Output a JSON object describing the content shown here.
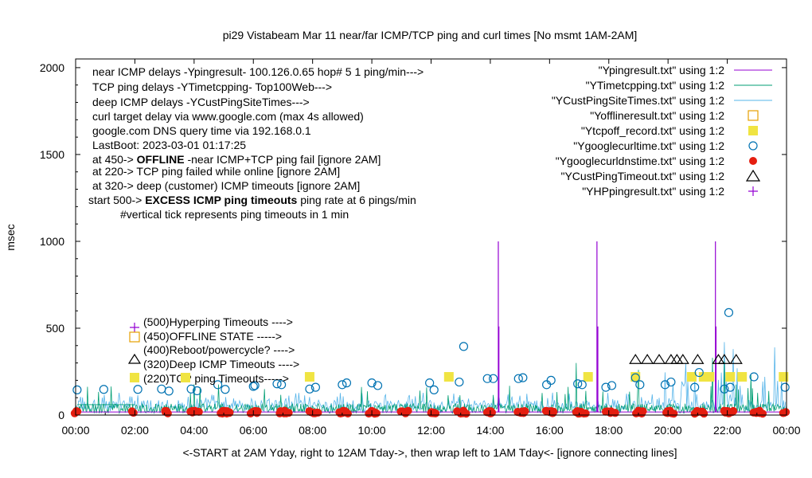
{
  "title": "pi29 Vistabeam Mar 11  near/far ICMP/TCP ping and curl times [No msmt 1AM-2AM]",
  "xlabel": "<-START at 2AM Yday, right to 12AM Tday->, then wrap left to 1AM Tday<- [ignore connecting lines]",
  "ylabel": "msec",
  "info": {
    "line1": "near ICMP delays -Ypingresult- 100.126.0.65 hop# 5 1 ping/min--->",
    "line2": "TCP ping delays -YTimetcpping- Top100Web--->",
    "line3": "deep ICMP delays -YCustPingSiteTimes--->",
    "line4": "curl target delay via www.google.com (max 4s allowed)",
    "line5": "google.com DNS query time via 192.168.0.1",
    "line6": "LastBoot: 2023-03-01 01:17:25",
    "line7_pre": "at 450->",
    "line7_bold": "OFFLINE",
    "line7_post": "-near ICMP+TCP ping fail [ignore 2AM]",
    "line8": "at 220-> TCP ping failed while online [ignore 2AM]",
    "line9": "at 320-> deep (customer) ICMP timeouts [ignore 2AM]",
    "line10_pre": "start 500->",
    "line10_bold": "EXCESS ICMP ping timeouts",
    "line10_post": "ping rate at 6 pings/min",
    "line11": "#vertical tick represents ping timeouts in 1 min"
  },
  "markers_legend": {
    "m500": "(500)Hyperping Timeouts ---->",
    "m450": "(450)OFFLINE STATE ----->",
    "m400": "(400)Reboot/powercycle? ---->",
    "m320": "(320)Deep ICMP Timeouts ---->",
    "m220": "(220)TCP ping Timeouts----->"
  },
  "colors": {
    "ping": "#9400d3",
    "tcp": "#009e73",
    "deep": "#56b4e9",
    "offline": "#e69f00",
    "tcpoff": "#f0e442",
    "curl": "#0072b2",
    "dns": "#e51e10",
    "custtimeout": "#000000",
    "hp": "#9400d3"
  },
  "chart_data": {
    "type": "line",
    "title": "pi29 Vistabeam Mar 11  near/far ICMP/TCP ping and curl times [No msmt 1AM-2AM]",
    "xlabel": "<-START at 2AM Yday, right to 12AM Tday->, then wrap left to 1AM Tday<- [ignore connecting lines]",
    "ylabel": "msec",
    "xlim": [
      0,
      24
    ],
    "ylim": [
      0,
      2050
    ],
    "x_unit": "hour of day",
    "xticks": [
      "00:00",
      "02:00",
      "04:00",
      "06:00",
      "08:00",
      "10:00",
      "12:00",
      "14:00",
      "16:00",
      "18:00",
      "20:00",
      "22:00",
      "00:00"
    ],
    "yticks": [
      "0",
      "500",
      "1000",
      "1500",
      "2000"
    ],
    "legend_position": "top-right",
    "grid": false,
    "series": [
      {
        "name": "\"Ypingresult.txt\" using 1:2",
        "style": "line",
        "color": "#9400d3",
        "baseline_ms": 18,
        "spikes": [
          [
            14.27,
            1000
          ],
          [
            14.29,
            510
          ],
          [
            17.6,
            1000
          ],
          [
            17.63,
            510
          ],
          [
            21.6,
            1000
          ],
          [
            21.62,
            510
          ]
        ]
      },
      {
        "name": "\"YTimetcpping.txt\" using 1:2",
        "style": "line",
        "color": "#009e73",
        "typical_range_ms": [
          10,
          90
        ],
        "peaks": [
          [
            16.9,
            300
          ],
          [
            19.0,
            260
          ],
          [
            21.5,
            330
          ],
          [
            21.9,
            310
          ],
          [
            22.8,
            230
          ]
        ]
      },
      {
        "name": "\"YCustPingSiteTimes.txt\" using 1:2",
        "style": "line",
        "color": "#56b4e9",
        "typical_range_ms": [
          20,
          130
        ],
        "peaks": [
          [
            20.6,
            300
          ],
          [
            21.9,
            420
          ],
          [
            22.2,
            380
          ],
          [
            23.6,
            390
          ]
        ]
      },
      {
        "name": "\"Yofflineresult.txt\" using 1:2",
        "style": "open-square",
        "color": "#e69f00",
        "points": []
      },
      {
        "name": "\"Ytcpoff_record.txt\" using 1:2",
        "style": "filled-square",
        "color": "#f0e442",
        "points": [
          [
            7.9,
            220
          ],
          [
            12.6,
            220
          ],
          [
            17.3,
            220
          ],
          [
            18.9,
            220
          ],
          [
            20.8,
            220
          ],
          [
            21.2,
            220
          ],
          [
            21.4,
            220
          ],
          [
            22.1,
            220
          ],
          [
            22.5,
            220
          ],
          [
            23.9,
            220
          ]
        ]
      },
      {
        "name": "\"Ygooglecurltime.txt\" using 1:2",
        "style": "open-circle",
        "color": "#0072b2",
        "points": [
          [
            0.05,
            145
          ],
          [
            0.95,
            148
          ],
          [
            2.1,
            148
          ],
          [
            2.9,
            150
          ],
          [
            3.15,
            138
          ],
          [
            3.9,
            150
          ],
          [
            4.1,
            140
          ],
          [
            4.8,
            175
          ],
          [
            5.05,
            148
          ],
          [
            6.0,
            165
          ],
          [
            6.05,
            170
          ],
          [
            6.8,
            180
          ],
          [
            6.95,
            175
          ],
          [
            7.9,
            150
          ],
          [
            8.1,
            160
          ],
          [
            9.0,
            175
          ],
          [
            9.15,
            185
          ],
          [
            10.0,
            185
          ],
          [
            10.2,
            170
          ],
          [
            11.95,
            185
          ],
          [
            12.1,
            145
          ],
          [
            12.95,
            190
          ],
          [
            13.1,
            395
          ],
          [
            13.9,
            210
          ],
          [
            14.1,
            210
          ],
          [
            14.95,
            210
          ],
          [
            15.1,
            215
          ],
          [
            15.9,
            175
          ],
          [
            16.05,
            200
          ],
          [
            16.95,
            180
          ],
          [
            17.1,
            175
          ],
          [
            17.9,
            160
          ],
          [
            18.1,
            170
          ],
          [
            18.9,
            215
          ],
          [
            19.05,
            175
          ],
          [
            19.9,
            175
          ],
          [
            20.1,
            190
          ],
          [
            20.9,
            160
          ],
          [
            21.05,
            245
          ],
          [
            21.9,
            150
          ],
          [
            22.05,
            590
          ],
          [
            22.1,
            160
          ],
          [
            22.9,
            220
          ],
          [
            23.95,
            160
          ]
        ]
      },
      {
        "name": "\"Ygooglecurldnstime.txt\" using 1:2",
        "style": "filled-circle",
        "color": "#e51e10",
        "typical_range_ms": [
          8,
          25
        ],
        "point_hours": [
          0.05,
          2.0,
          3.0,
          3.1,
          4.0,
          4.1,
          5.0,
          5.1,
          6.0,
          6.1,
          7.0,
          7.1,
          8.0,
          8.1,
          9.0,
          9.1,
          10.0,
          10.1,
          11.0,
          11.1,
          12.0,
          12.1,
          13.0,
          13.1,
          14.0,
          14.1,
          15.0,
          15.1,
          16.0,
          16.1,
          17.0,
          17.1,
          18.0,
          18.1,
          19.0,
          19.1,
          20.0,
          20.1,
          21.0,
          21.1,
          22.0,
          22.1,
          23.0,
          23.1,
          23.95
        ]
      },
      {
        "name": "\"YCustPingTimeout.txt\" using 1:2",
        "style": "open-triangle",
        "color": "#000000",
        "points": [
          [
            18.9,
            320
          ],
          [
            19.3,
            320
          ],
          [
            19.7,
            320
          ],
          [
            20.1,
            320
          ],
          [
            20.3,
            320
          ],
          [
            20.5,
            320
          ],
          [
            21.0,
            320
          ],
          [
            21.7,
            320
          ],
          [
            21.9,
            320
          ],
          [
            22.3,
            320
          ]
        ]
      },
      {
        "name": "\"YHPpingresult.txt\" using 1:2",
        "style": "plus",
        "color": "#9400d3",
        "points": []
      }
    ]
  }
}
